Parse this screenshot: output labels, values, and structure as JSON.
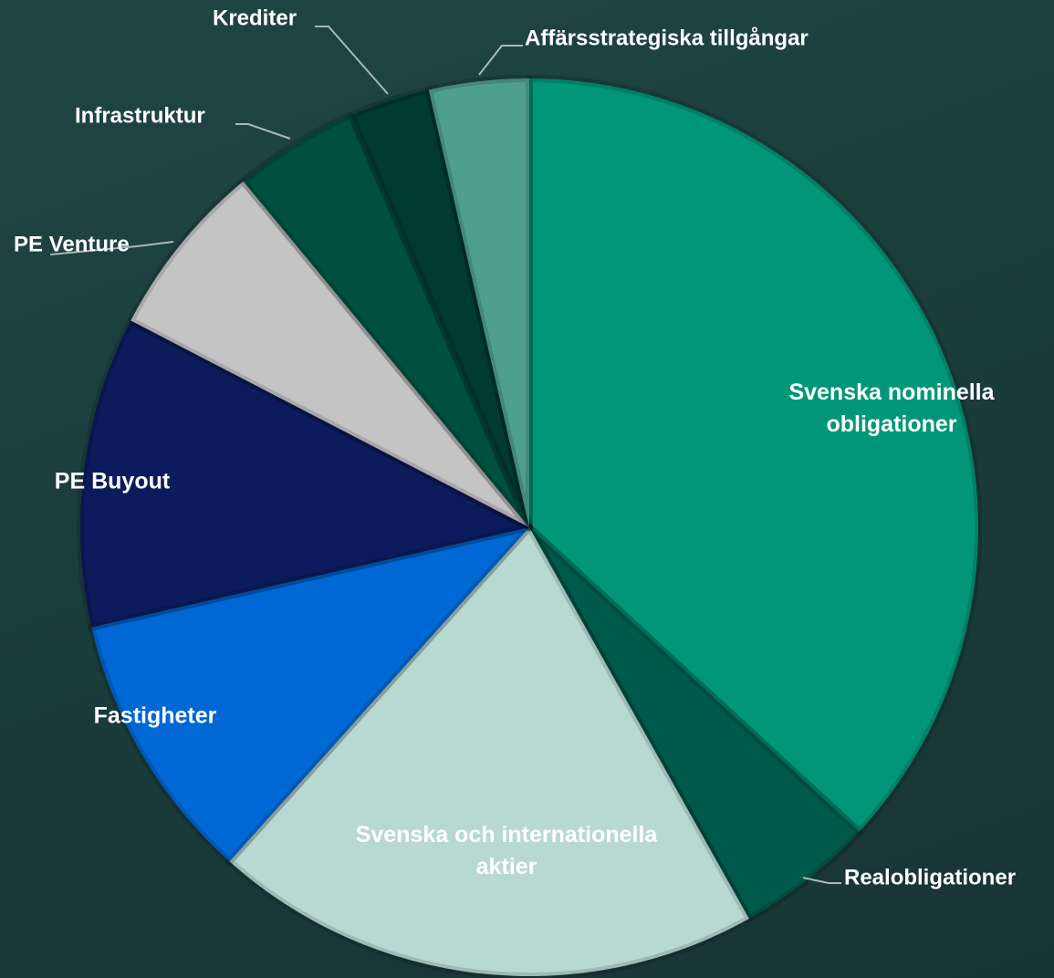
{
  "chart_data": {
    "type": "pie",
    "categories": [
      "Svenska nominella obligationer",
      "Realobligationer",
      "Svenska och internationella aktier",
      "Fastigheter",
      "PE Buyout",
      "PE Venture",
      "Infrastruktur",
      "Krediter",
      "Affärsstrategiska tillgångar"
    ],
    "values": [
      36.9,
      5,
      19.8,
      9.8,
      11.2,
      6.4,
      4.5,
      2.9,
      3.6
    ],
    "colors": [
      "#009677",
      "#005a4c",
      "#b8d9d2",
      "#0068d4",
      "#0c1b5c",
      "#c4c4c4",
      "#00503e",
      "#003a30",
      "#4e9f8f"
    ]
  }
}
